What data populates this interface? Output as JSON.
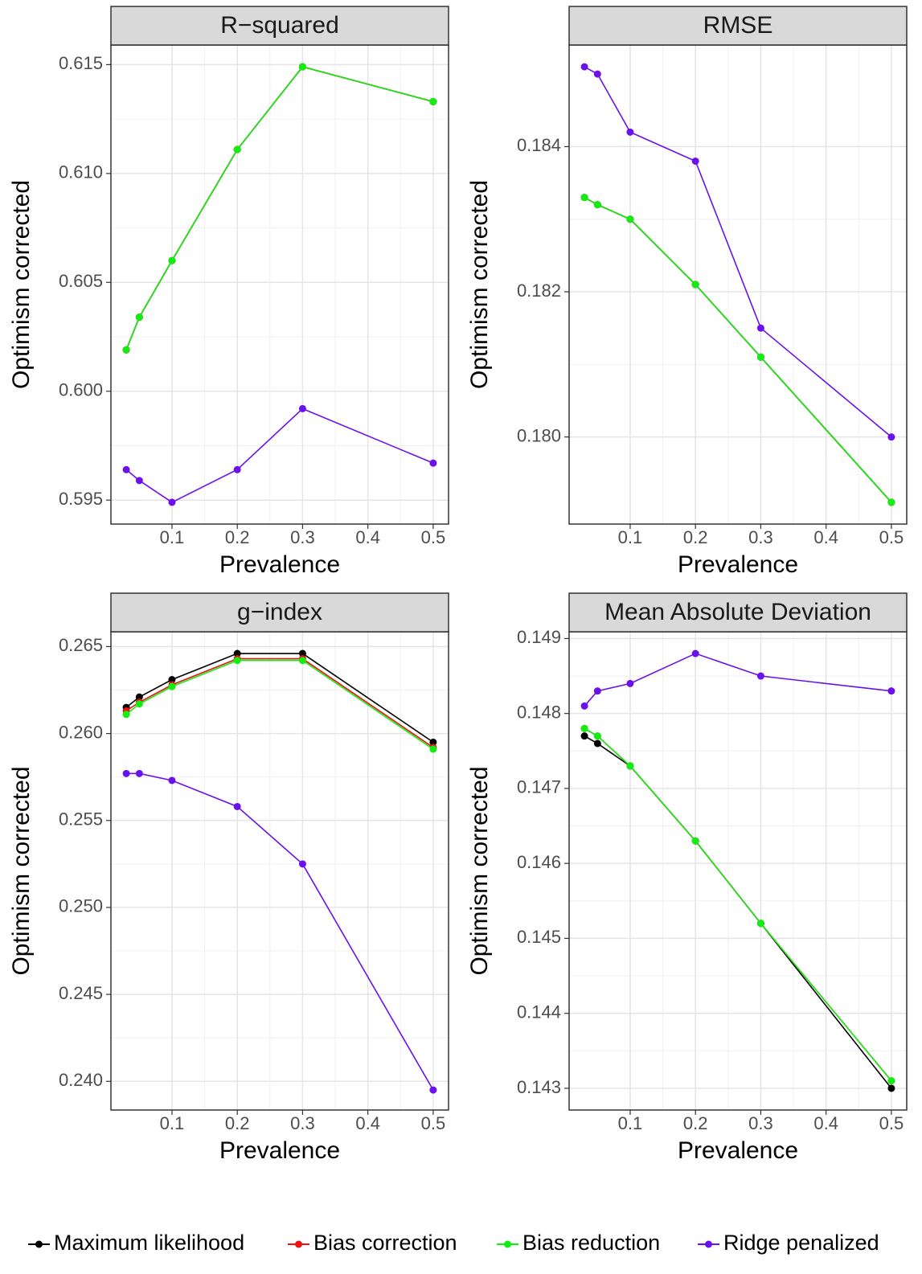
{
  "chart_data": [
    {
      "type": "line",
      "title": "R−squared",
      "x_label": "Prevalence",
      "y_label": "Optimism corrected",
      "x": [
        0.03,
        0.05,
        0.1,
        0.2,
        0.3,
        0.5
      ],
      "series": [
        {
          "name": "Maximum likelihood",
          "color": "#000000",
          "values": [
            0.6019,
            0.6034,
            0.606,
            0.6111,
            0.6149,
            0.6133
          ]
        },
        {
          "name": "Bias correction",
          "color": "#ee1111",
          "values": [
            0.6019,
            0.6034,
            0.606,
            0.6111,
            0.6149,
            0.6133
          ]
        },
        {
          "name": "Bias reduction",
          "color": "#11ee11",
          "values": [
            0.6019,
            0.6034,
            0.606,
            0.6111,
            0.6149,
            0.6133
          ]
        },
        {
          "name": "Ridge penalized",
          "color": "#6a11ee",
          "values": [
            0.5964,
            0.5959,
            0.5949,
            0.5964,
            0.5992,
            0.5967
          ]
        }
      ],
      "xlim": [
        0.0065,
        0.5235
      ],
      "xticks": [
        0.1,
        0.2,
        0.3,
        0.4,
        0.5
      ],
      "ylim": [
        0.5939,
        0.6159
      ],
      "yticks": [
        0.595,
        {
          "value": 0.6,
          "label": "0.600"
        },
        0.605,
        {
          "value": 0.61,
          "label": "0.610"
        },
        0.615
      ],
      "grid": true
    },
    {
      "type": "line",
      "title": "RMSE",
      "x_label": "Prevalence",
      "y_label": "Optimism corrected",
      "x": [
        0.03,
        0.05,
        0.1,
        0.2,
        0.3,
        0.5
      ],
      "series": [
        {
          "name": "Maximum likelihood",
          "color": "#000000",
          "values": [
            0.1833,
            0.1832,
            0.183,
            0.1821,
            0.1811,
            0.1791
          ]
        },
        {
          "name": "Bias correction",
          "color": "#ee1111",
          "values": [
            0.1833,
            0.1832,
            0.183,
            0.1821,
            0.1811,
            0.1791
          ]
        },
        {
          "name": "Bias reduction",
          "color": "#11ee11",
          "values": [
            0.1833,
            0.1832,
            0.183,
            0.1821,
            0.1811,
            0.1791
          ]
        },
        {
          "name": "Ridge penalized",
          "color": "#6a11ee",
          "values": [
            0.1851,
            0.185,
            0.1842,
            0.1838,
            0.1815,
            0.18
          ]
        }
      ],
      "xlim": [
        0.0065,
        0.5235
      ],
      "xticks": [
        0.1,
        0.2,
        0.3,
        0.4,
        0.5
      ],
      "ylim": [
        0.1788,
        0.1854
      ],
      "yticks": [
        {
          "value": 0.18,
          "label": "0.180"
        },
        0.182,
        0.184
      ],
      "grid": true
    },
    {
      "type": "line",
      "title": "g−index",
      "x_label": "Prevalence",
      "y_label": "Optimism corrected",
      "x": [
        0.03,
        0.05,
        0.1,
        0.2,
        0.3,
        0.5
      ],
      "series": [
        {
          "name": "Maximum likelihood",
          "color": "#000000",
          "values": [
            0.2615,
            0.2621,
            0.2631,
            0.2646,
            0.2646,
            0.2595
          ]
        },
        {
          "name": "Bias correction",
          "color": "#ee1111",
          "values": [
            0.2613,
            0.2618,
            0.2628,
            0.2643,
            0.2643,
            0.2592
          ]
        },
        {
          "name": "Bias reduction",
          "color": "#11ee11",
          "values": [
            0.2611,
            0.2617,
            0.2627,
            0.2642,
            0.2642,
            0.2591
          ]
        },
        {
          "name": "Ridge penalized",
          "color": "#6a11ee",
          "values": [
            0.2577,
            0.2577,
            0.2573,
            0.2558,
            0.2525,
            0.2395
          ]
        }
      ],
      "xlim": [
        0.0065,
        0.5235
      ],
      "xticks": [
        0.1,
        0.2,
        0.3,
        0.4,
        0.5
      ],
      "ylim": [
        0.23835,
        0.26585
      ],
      "yticks": [
        {
          "value": 0.24,
          "label": "0.240"
        },
        0.245,
        {
          "value": 0.25,
          "label": "0.250"
        },
        0.255,
        {
          "value": 0.26,
          "label": "0.260"
        },
        0.265
      ],
      "grid": true
    },
    {
      "type": "line",
      "title": "Mean Absolute Deviation",
      "x_label": "Prevalence",
      "y_label": "Optimism corrected",
      "x": [
        0.03,
        0.05,
        0.1,
        0.2,
        0.3,
        0.5
      ],
      "series": [
        {
          "name": "Maximum likelihood",
          "color": "#000000",
          "values": [
            0.1477,
            0.1476,
            0.1473,
            0.1463,
            0.1452,
            0.143
          ]
        },
        {
          "name": "Bias correction",
          "color": "#ee1111",
          "values": [
            0.1478,
            0.1477,
            0.1473,
            0.1463,
            0.1452,
            0.1431
          ]
        },
        {
          "name": "Bias reduction",
          "color": "#11ee11",
          "values": [
            0.1478,
            0.1477,
            0.1473,
            0.1463,
            0.1452,
            0.1431
          ]
        },
        {
          "name": "Ridge penalized",
          "color": "#6a11ee",
          "values": [
            0.1481,
            0.1483,
            0.1484,
            0.1488,
            0.1485,
            0.1483
          ]
        }
      ],
      "xlim": [
        0.0065,
        0.5235
      ],
      "xticks": [
        0.1,
        0.2,
        0.3,
        0.4,
        0.5
      ],
      "ylim": [
        0.14271,
        0.14909
      ],
      "yticks": [
        0.143,
        0.144,
        0.145,
        0.146,
        0.147,
        0.148,
        0.149
      ],
      "grid": true
    }
  ]
}
